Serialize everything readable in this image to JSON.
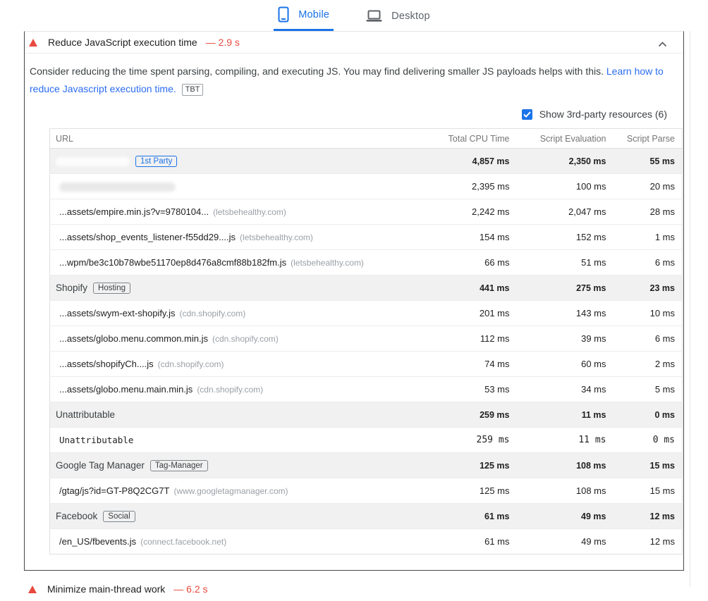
{
  "tabs": {
    "mobile": "Mobile",
    "desktop": "Desktop"
  },
  "audit": {
    "title": "Reduce JavaScript execution time",
    "display_value": "— 2.9 s",
    "description": "Consider reducing the time spent parsing, compiling, and executing JS. You may find delivering smaller JS payloads helps with this.",
    "link_text": "Learn how to reduce Javascript execution time.",
    "metric_badge": "TBT",
    "show_third_party_label": "Show 3rd-party resources (6)",
    "checkbox_checked": true
  },
  "table": {
    "headers": [
      "URL",
      "Total CPU Time",
      "Script Evaluation",
      "Script Parse"
    ],
    "rows": [
      {
        "group": true,
        "redacted": true,
        "redacted_tone": "light",
        "redacted_width": 105,
        "chip": "1st Party",
        "chip_style": "blue",
        "values": [
          "4,857 ms",
          "2,350 ms",
          "55 ms"
        ]
      },
      {
        "group": false,
        "redacted": true,
        "redacted_tone": "dark",
        "redacted_width": 165,
        "values": [
          "2,395 ms",
          "100 ms",
          "20 ms"
        ]
      },
      {
        "group": false,
        "url": "...assets/empire.min.js?v=9780104...",
        "domain": "(letsbehealthy.com)",
        "values": [
          "2,242 ms",
          "2,047 ms",
          "28 ms"
        ]
      },
      {
        "group": false,
        "url": "...assets/shop_events_listener-f55dd29....js",
        "domain": "(letsbehealthy.com)",
        "values": [
          "154 ms",
          "152 ms",
          "1 ms"
        ]
      },
      {
        "group": false,
        "url": "...wpm/be3c10b78wbe51170ep8d476a8cmf88b182fm.js",
        "domain": "(letsbehealthy.com)",
        "values": [
          "66 ms",
          "51 ms",
          "6 ms"
        ]
      },
      {
        "group": true,
        "label": "Shopify",
        "chip": "Hosting",
        "values": [
          "441 ms",
          "275 ms",
          "23 ms"
        ]
      },
      {
        "group": false,
        "url": "...assets/swym-ext-shopify.js",
        "domain": "(cdn.shopify.com)",
        "values": [
          "201 ms",
          "143 ms",
          "10 ms"
        ]
      },
      {
        "group": false,
        "url": "...assets/globo.menu.common.min.js",
        "domain": "(cdn.shopify.com)",
        "values": [
          "112 ms",
          "39 ms",
          "6 ms"
        ]
      },
      {
        "group": false,
        "url": "...assets/shopifyCh....js",
        "domain": "(cdn.shopify.com)",
        "values": [
          "74 ms",
          "60 ms",
          "2 ms"
        ]
      },
      {
        "group": false,
        "url": "...assets/globo.menu.main.min.js",
        "domain": "(cdn.shopify.com)",
        "values": [
          "53 ms",
          "34 ms",
          "5 ms"
        ]
      },
      {
        "group": true,
        "label": "Unattributable",
        "values": [
          "259 ms",
          "11 ms",
          "0 ms"
        ]
      },
      {
        "group": false,
        "mono": true,
        "url": "Unattributable",
        "values": [
          "259 ms",
          "11 ms",
          "0 ms"
        ]
      },
      {
        "group": true,
        "label": "Google Tag Manager",
        "chip": "Tag-Manager",
        "values": [
          "125 ms",
          "108 ms",
          "15 ms"
        ]
      },
      {
        "group": false,
        "url": "/gtag/js?id=GT-P8Q2CG7T",
        "domain": "(www.googletagmanager.com)",
        "values": [
          "125 ms",
          "108 ms",
          "15 ms"
        ]
      },
      {
        "group": true,
        "label": "Facebook",
        "chip": "Social",
        "values": [
          "61 ms",
          "49 ms",
          "12 ms"
        ]
      },
      {
        "group": false,
        "url": "/en_US/fbevents.js",
        "domain": "(connect.facebook.net)",
        "values": [
          "61 ms",
          "49 ms",
          "12 ms"
        ]
      }
    ]
  },
  "next_audit": {
    "title": "Minimize main-thread work",
    "display_value": "— 6.2 s"
  },
  "colors": {
    "accent_blue": "#1a73e8",
    "link_blue": "#2b6cf0",
    "fail_red": "#e8493e",
    "group_row_bg": "#f1f1f1",
    "card_border": "#46484b"
  }
}
